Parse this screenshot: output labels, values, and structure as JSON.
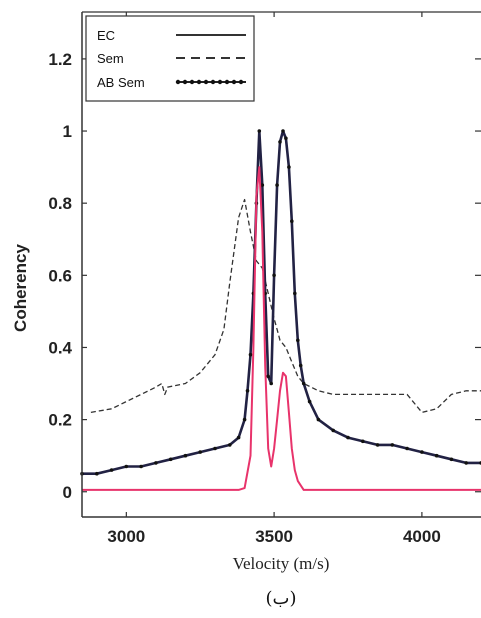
{
  "chart_data": {
    "type": "line",
    "title": "",
    "xlabel": "Velocity (m/s)",
    "ylabel": "Coherency",
    "caption": "(ب)",
    "xlim": [
      2850,
      4200
    ],
    "ylim": [
      -0.07,
      1.33
    ],
    "xticks": [
      3000,
      3500,
      4000
    ],
    "yticks": [
      0,
      0.2,
      0.4,
      0.6,
      0.8,
      1,
      1.2
    ],
    "ytick_labels": [
      "0",
      "0.2",
      "0.4",
      "0.6",
      "0.8",
      "1",
      "1.2"
    ],
    "legend": {
      "position": "top-left",
      "entries": [
        "EC",
        "Sem",
        "AB Sem"
      ]
    },
    "series": [
      {
        "name": "EC",
        "style": "solid",
        "color": "#e8336b",
        "x": [
          2850,
          3000,
          3200,
          3380,
          3400,
          3420,
          3430,
          3440,
          3450,
          3460,
          3470,
          3480,
          3490,
          3500,
          3510,
          3520,
          3530,
          3540,
          3550,
          3560,
          3570,
          3580,
          3600,
          3700,
          3900,
          4100,
          4200
        ],
        "y": [
          0.005,
          0.005,
          0.005,
          0.005,
          0.01,
          0.1,
          0.4,
          0.82,
          0.9,
          0.72,
          0.35,
          0.12,
          0.07,
          0.12,
          0.2,
          0.28,
          0.33,
          0.32,
          0.22,
          0.12,
          0.06,
          0.03,
          0.005,
          0.005,
          0.005,
          0.005,
          0.005
        ]
      },
      {
        "name": "Sem",
        "style": "dashed",
        "color": "#333333",
        "x": [
          2880,
          2950,
          3000,
          3050,
          3100,
          3120,
          3130,
          3140,
          3200,
          3250,
          3300,
          3330,
          3350,
          3380,
          3400,
          3420,
          3440,
          3460,
          3480,
          3500,
          3510,
          3520,
          3540,
          3560,
          3580,
          3600,
          3650,
          3700,
          3800,
          3900,
          3950,
          4000,
          4050,
          4100,
          4150,
          4200
        ],
        "y": [
          0.22,
          0.23,
          0.25,
          0.27,
          0.29,
          0.3,
          0.27,
          0.29,
          0.3,
          0.33,
          0.38,
          0.45,
          0.58,
          0.76,
          0.81,
          0.72,
          0.64,
          0.62,
          0.55,
          0.48,
          0.45,
          0.42,
          0.4,
          0.36,
          0.32,
          0.3,
          0.28,
          0.27,
          0.27,
          0.27,
          0.27,
          0.22,
          0.23,
          0.27,
          0.28,
          0.28
        ]
      },
      {
        "name": "AB Sem",
        "style": "dotted-solid",
        "color": "#222244",
        "x": [
          2850,
          2900,
          2950,
          3000,
          3050,
          3100,
          3150,
          3200,
          3250,
          3300,
          3350,
          3380,
          3400,
          3410,
          3420,
          3430,
          3440,
          3450,
          3460,
          3470,
          3480,
          3490,
          3500,
          3510,
          3520,
          3530,
          3540,
          3550,
          3560,
          3570,
          3580,
          3590,
          3600,
          3620,
          3650,
          3700,
          3750,
          3800,
          3850,
          3900,
          3950,
          4000,
          4050,
          4100,
          4150,
          4200
        ],
        "y": [
          0.05,
          0.05,
          0.06,
          0.07,
          0.07,
          0.08,
          0.09,
          0.1,
          0.11,
          0.12,
          0.13,
          0.15,
          0.2,
          0.28,
          0.38,
          0.55,
          0.8,
          1.0,
          0.85,
          0.55,
          0.32,
          0.3,
          0.6,
          0.85,
          0.97,
          1.0,
          0.98,
          0.9,
          0.75,
          0.55,
          0.42,
          0.35,
          0.3,
          0.25,
          0.2,
          0.17,
          0.15,
          0.14,
          0.13,
          0.13,
          0.12,
          0.11,
          0.1,
          0.09,
          0.08,
          0.08
        ]
      }
    ]
  }
}
